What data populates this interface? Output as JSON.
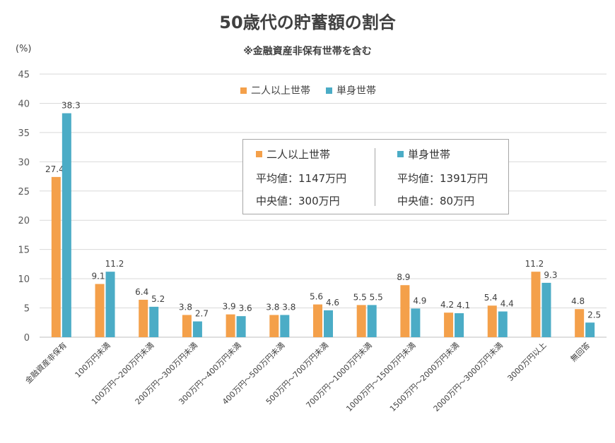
{
  "chart_data": {
    "type": "bar",
    "title": "50歳代の貯蓄額の割合",
    "subtitle": "※金融資産非保有世帯を含む",
    "ylabel": "(%)",
    "xlabel": "",
    "ylim": [
      0,
      45
    ],
    "yticks": [
      0,
      5,
      10,
      15,
      20,
      25,
      30,
      35,
      40,
      45
    ],
    "grid": true,
    "legend_position": "top-center",
    "categories": [
      "金融資産非保有",
      "100万円未満",
      "100万円～200万円未満",
      "200万円～300万円未満",
      "300万円～400万円未満",
      "400万円～500万円未満",
      "500万円～700万円未満",
      "700万円～1000万円未満",
      "1000万円～1500万円未満",
      "1500万円～2000万円未満",
      "2000万円～3000万円未満",
      "3000万円以上",
      "無回答"
    ],
    "series": [
      {
        "name": "二人以上世帯",
        "color": "#f4a04a",
        "values": [
          27.4,
          9.1,
          6.4,
          3.8,
          3.9,
          3.8,
          5.6,
          5.5,
          8.9,
          4.2,
          5.4,
          11.2,
          4.8
        ]
      },
      {
        "name": "単身世帯",
        "color": "#4bacc6",
        "values": [
          38.3,
          11.2,
          5.2,
          2.7,
          3.6,
          3.8,
          4.6,
          5.5,
          4.9,
          4.1,
          4.4,
          9.3,
          2.5
        ]
      }
    ],
    "stats": {
      "left": {
        "name": "二人以上世帯",
        "avg_label": "平均値：1147万円",
        "median_label": "中央値：300万円"
      },
      "right": {
        "name": "単身世帯",
        "avg_label": "平均値：1391万円",
        "median_label": "中央値：80万円"
      }
    }
  }
}
